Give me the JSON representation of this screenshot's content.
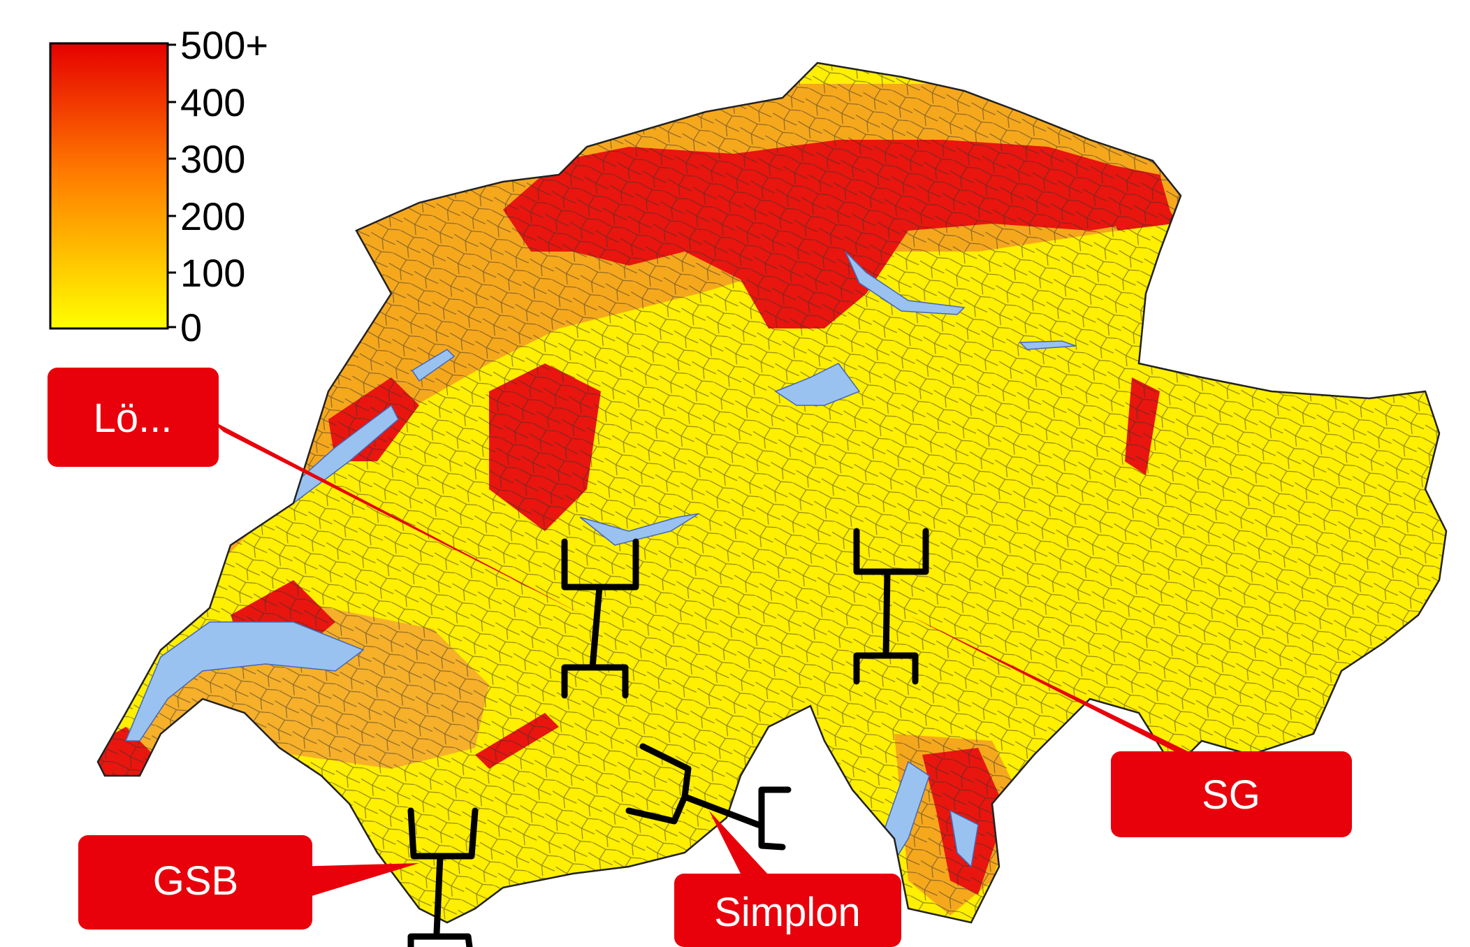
{
  "legend": {
    "ticks": [
      "500+",
      "400",
      "300",
      "200",
      "100",
      "0"
    ],
    "gradient_top": "#e60000",
    "gradient_mid": "#ff7a00",
    "gradient_bottom": "#ffff00"
  },
  "map": {
    "lake_color": "#99c2f0",
    "border_color": "#111111",
    "high_color": "#e8120c",
    "mid_color": "#f4a11a",
    "low_color": "#ffee00"
  },
  "callouts": [
    {
      "id": "loe",
      "label": "Lö..."
    },
    {
      "id": "sg",
      "label": "SG"
    },
    {
      "id": "gsb",
      "label": "GSB"
    },
    {
      "id": "simplon",
      "label": "Simplon"
    }
  ],
  "callout_color": "#e8000b"
}
